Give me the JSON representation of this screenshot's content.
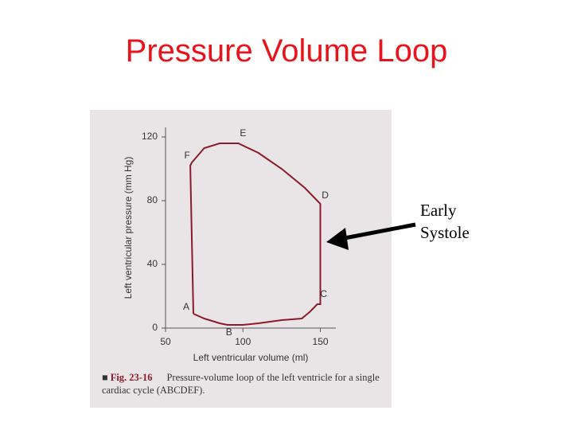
{
  "title": "Pressure Volume Loop",
  "callout": "Early Systole",
  "figure_number": "Fig. 23-16",
  "caption": "Pressure-volume loop of the left ventricle for a single cardiac cycle (ABCDEF).",
  "chart_data": {
    "type": "line",
    "xlabel": "Left ventricular volume (ml)",
    "ylabel": "Left ventricular pressure (mm Hg)",
    "x": [
      68,
      75,
      85,
      90,
      100,
      110,
      125,
      138,
      143,
      148,
      150,
      150,
      140,
      125,
      110,
      97,
      85,
      75,
      67,
      66,
      68
    ],
    "values": [
      9,
      6,
      3,
      2,
      2,
      3,
      5,
      6,
      10,
      15,
      15,
      78,
      88,
      100,
      110,
      116,
      116,
      113,
      104,
      102,
      9
    ],
    "point_labels": [
      "A",
      null,
      null,
      "B",
      null,
      null,
      null,
      null,
      null,
      "C",
      null,
      "D",
      null,
      null,
      null,
      "E",
      null,
      null,
      null,
      "F",
      null
    ],
    "color": "#8b1a2a",
    "xlim": [
      50,
      160
    ],
    "xticks": [
      50,
      100,
      150
    ],
    "ylim": [
      0,
      125
    ],
    "yticks": [
      0,
      40,
      80,
      120
    ]
  }
}
